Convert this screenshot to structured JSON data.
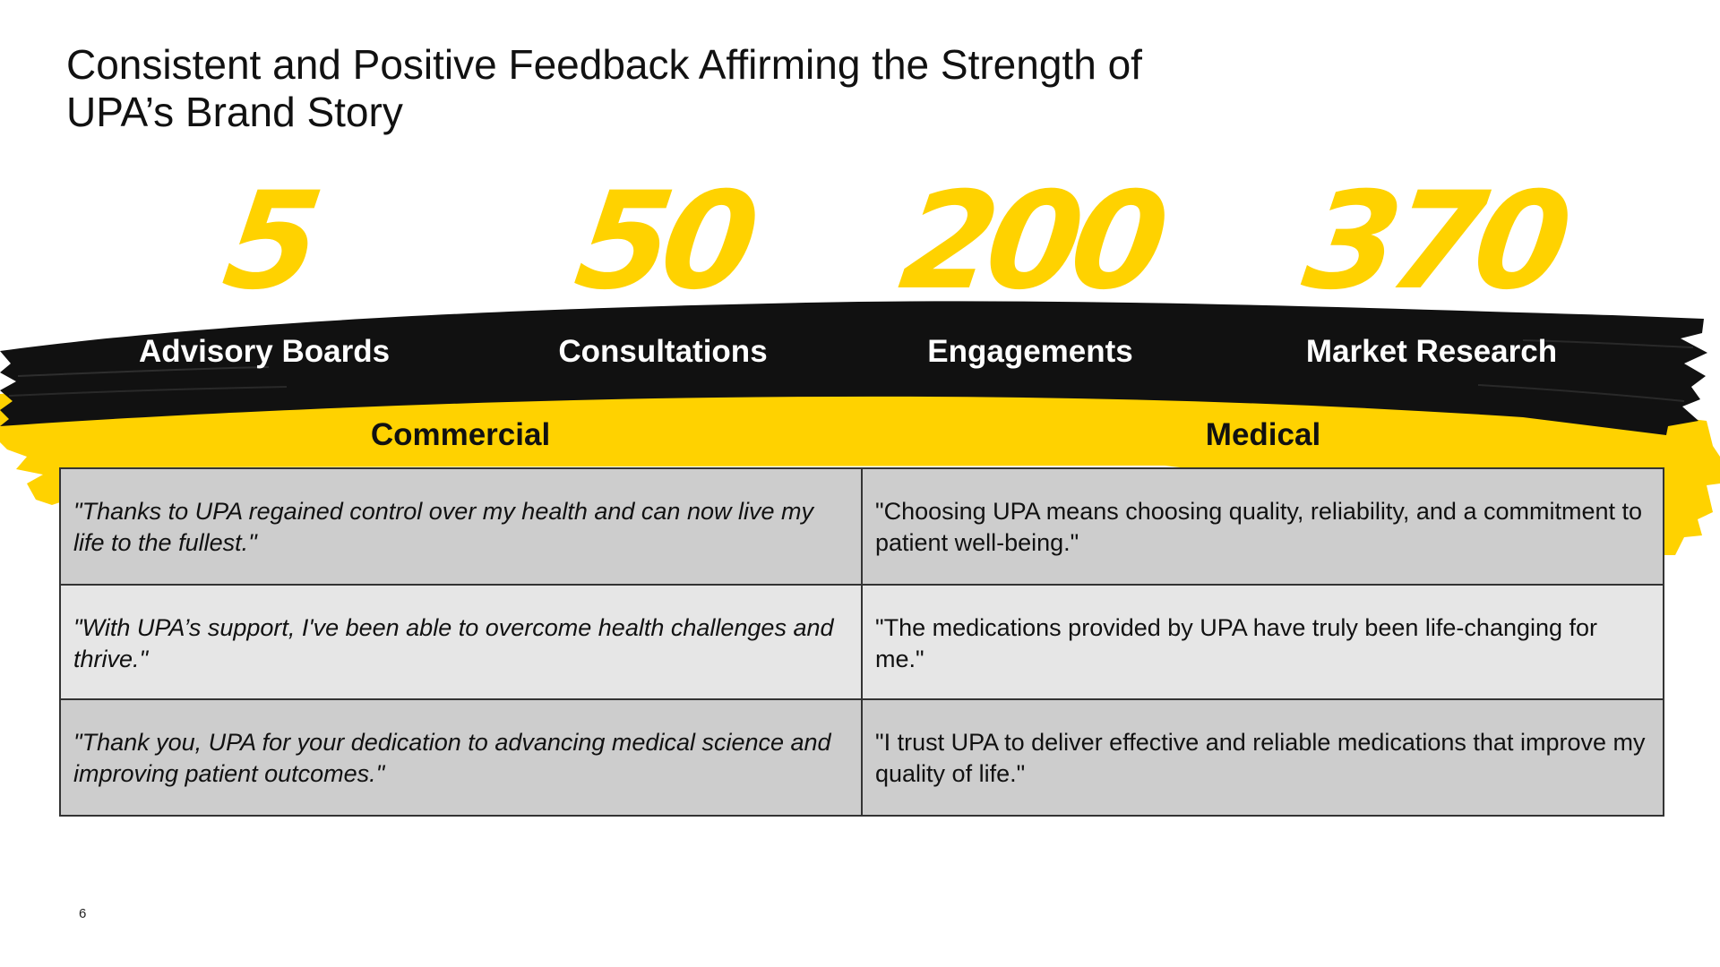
{
  "title": {
    "line1": "Consistent and Positive Feedback Affirming the Strength of",
    "line2": "UPA’s Brand Story"
  },
  "stats": [
    {
      "number": "5",
      "label": "Advisory Boards"
    },
    {
      "number": "50",
      "label": "Consultations"
    },
    {
      "number": "200",
      "label": "Engagements"
    },
    {
      "number": "370",
      "label": "Market Research"
    }
  ],
  "columns": {
    "commercial": "Commercial",
    "medical": "Medical"
  },
  "quotes": [
    {
      "commercial": "\"Thanks to UPA regained control over my health and can now live my life to the fullest.\"",
      "medical": "\"Choosing UPA means choosing quality, reliability, and a commitment to patient well-being.\""
    },
    {
      "commercial": "\"With UPA’s support, I've been able to overcome health challenges and thrive.\"",
      "medical": "\"The medications provided by UPA have truly been life-changing for me.\""
    },
    {
      "commercial": "\"Thank you, UPA for your dedication to advancing medical science and improving patient outcomes.\"",
      "medical": "\"I trust UPA to deliver effective and reliable medications that improve my quality of life.\""
    }
  ],
  "page_number": "6",
  "colors": {
    "accent_yellow": "#ffd200",
    "brush_black": "#111111",
    "row_dark": "#cdcdcd",
    "row_light": "#e6e6e6"
  }
}
